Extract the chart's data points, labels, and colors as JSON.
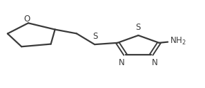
{
  "background_color": "#ffffff",
  "line_color": "#3a3a3a",
  "line_width": 1.6,
  "font_size_atoms": 8.5,
  "xlim": [
    0,
    1.15
  ],
  "ylim": [
    0.0,
    1.0
  ],
  "figsize": [
    2.97,
    1.27
  ],
  "dpi": 100
}
